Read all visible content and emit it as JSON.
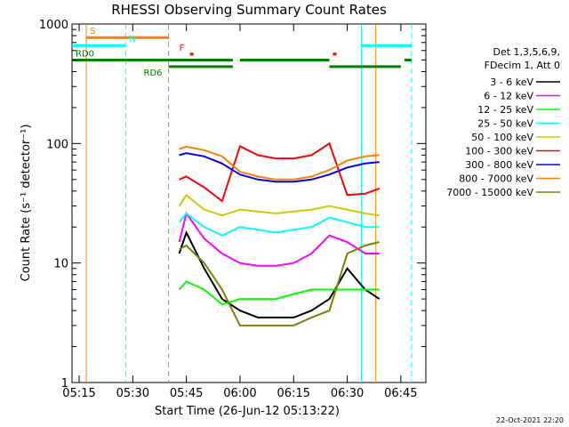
{
  "chart_data": {
    "type": "line",
    "title": "RHESSI Observing Summary Count Rates",
    "xlabel": "Start Time (26-Jun-12 05:13:22)",
    "ylabel": "Count Rate (s⁻¹ detector⁻¹)",
    "yscale": "log",
    "ylim": [
      1,
      1000
    ],
    "xlim": [
      "05:13",
      "06:52"
    ],
    "x_ticks": [
      "05:15",
      "05:30",
      "05:45",
      "06:00",
      "06:15",
      "06:30",
      "06:45"
    ],
    "y_ticks": [
      "1",
      "10",
      "100",
      "1000"
    ],
    "grid": false,
    "legend_position": "right",
    "legend_header": [
      "Det 1,3,5,6,9,",
      "FDecim 1, Att 0"
    ],
    "footer_date": "22-Oct-2021 22:20",
    "series": [
      {
        "name": "3 - 6 keV",
        "color": "#000000",
        "x": [
          "05:43",
          "05:45",
          "05:50",
          "05:55",
          "06:00",
          "06:05",
          "06:10",
          "06:15",
          "06:20",
          "06:25",
          "06:30",
          "06:35",
          "06:39"
        ],
        "y": [
          12,
          18,
          9,
          5,
          4,
          3.5,
          3.5,
          3.5,
          4,
          5,
          9,
          6,
          5
        ]
      },
      {
        "name": "6 - 12 keV",
        "color": "#ff00ff",
        "x": [
          "05:43",
          "05:45",
          "05:50",
          "05:55",
          "06:00",
          "06:05",
          "06:10",
          "06:15",
          "06:20",
          "06:25",
          "06:30",
          "06:35",
          "06:39"
        ],
        "y": [
          15,
          26,
          16,
          12,
          10,
          9.5,
          9.5,
          10,
          12,
          17,
          15,
          12,
          12
        ]
      },
      {
        "name": "12 - 25 keV",
        "color": "#00ff00",
        "x": [
          "05:43",
          "05:45",
          "05:50",
          "05:55",
          "06:00",
          "06:05",
          "06:10",
          "06:15",
          "06:20",
          "06:25",
          "06:30",
          "06:35",
          "06:39"
        ],
        "y": [
          6,
          7,
          6,
          4.5,
          5,
          5,
          5,
          5.5,
          6,
          6,
          6,
          6,
          6
        ]
      },
      {
        "name": "25 - 50 keV",
        "color": "#00ffff",
        "x": [
          "05:43",
          "05:45",
          "05:50",
          "05:55",
          "06:00",
          "06:05",
          "06:10",
          "06:15",
          "06:20",
          "06:25",
          "06:30",
          "06:35",
          "06:39"
        ],
        "y": [
          22,
          26,
          20,
          17,
          20,
          19,
          18,
          19,
          20,
          24,
          22,
          20,
          20
        ]
      },
      {
        "name": "50 - 100 keV",
        "color": "#cccc00",
        "x": [
          "05:43",
          "05:45",
          "05:50",
          "05:55",
          "06:00",
          "06:05",
          "06:10",
          "06:15",
          "06:20",
          "06:25",
          "06:30",
          "06:35",
          "06:39"
        ],
        "y": [
          30,
          37,
          28,
          25,
          28,
          27,
          26,
          27,
          28,
          30,
          28,
          26,
          25
        ]
      },
      {
        "name": "100 - 300 keV",
        "color": "#ff0000",
        "x": [
          "05:43",
          "05:45",
          "05:50",
          "05:55",
          "06:00",
          "06:05",
          "06:10",
          "06:15",
          "06:20",
          "06:25",
          "06:30",
          "06:35",
          "06:39"
        ],
        "y": [
          50,
          53,
          43,
          33,
          95,
          80,
          75,
          75,
          80,
          100,
          37,
          38,
          42
        ]
      },
      {
        "name": "300 - 800 keV",
        "color": "#0000ff",
        "x": [
          "05:43",
          "05:45",
          "05:50",
          "05:55",
          "06:00",
          "06:05",
          "06:10",
          "06:15",
          "06:20",
          "06:25",
          "06:30",
          "06:35",
          "06:39"
        ],
        "y": [
          80,
          83,
          78,
          68,
          55,
          50,
          48,
          48,
          50,
          55,
          63,
          68,
          70
        ]
      },
      {
        "name": "800 - 7000 keV",
        "color": "#ff8000",
        "x": [
          "05:43",
          "05:45",
          "05:50",
          "05:55",
          "06:00",
          "06:05",
          "06:10",
          "06:15",
          "06:20",
          "06:25",
          "06:30",
          "06:35",
          "06:39"
        ],
        "y": [
          90,
          94,
          88,
          78,
          58,
          53,
          50,
          50,
          53,
          60,
          72,
          78,
          80
        ]
      },
      {
        "name": "7000 - 15000 keV",
        "color": "#808000",
        "x": [
          "05:43",
          "05:45",
          "05:50",
          "05:55",
          "06:00",
          "06:05",
          "06:10",
          "06:15",
          "06:20",
          "06:25",
          "06:30",
          "06:35",
          "06:39"
        ],
        "y": [
          13,
          14,
          10,
          6,
          3,
          3,
          3,
          3,
          3.5,
          4,
          12,
          14,
          15
        ]
      }
    ],
    "flags": [
      {
        "label": "S",
        "color": "#ff8000",
        "y": 770,
        "segments": [
          [
            "05:17",
            "05:40"
          ]
        ]
      },
      {
        "label": "N",
        "color": "#00ffff",
        "y": 660,
        "segments": [
          [
            "05:13",
            "05:28"
          ],
          [
            "06:34",
            "06:48"
          ]
        ]
      },
      {
        "label": "F",
        "color": "#ff0000",
        "y": 560,
        "segments": [
          [
            "05:46",
            "05:47"
          ],
          [
            "06:26",
            "06:27"
          ]
        ]
      },
      {
        "label": "RD0",
        "color": "#008000",
        "y": 500,
        "segments": [
          [
            "05:13",
            "05:58"
          ],
          [
            "06:00",
            "06:25"
          ],
          [
            "06:46",
            "06:48"
          ]
        ]
      },
      {
        "label": "RD6",
        "color": "#008000",
        "y": 440,
        "segments": [
          [
            "05:40",
            "05:58"
          ],
          [
            "06:25",
            "06:45"
          ]
        ]
      }
    ],
    "markers": [
      {
        "time": "05:17",
        "color": "#ff8000",
        "style": "solid"
      },
      {
        "time": "05:28",
        "color": "#00ffff",
        "style": "dashed"
      },
      {
        "time": "05:40",
        "color": "#ff8000",
        "style": "dashed"
      },
      {
        "time": "06:34",
        "color": "#00ffff",
        "style": "solid"
      },
      {
        "time": "06:38",
        "color": "#ff8000",
        "style": "solid"
      },
      {
        "time": "06:48",
        "color": "#00ffff",
        "style": "dashed"
      }
    ]
  }
}
